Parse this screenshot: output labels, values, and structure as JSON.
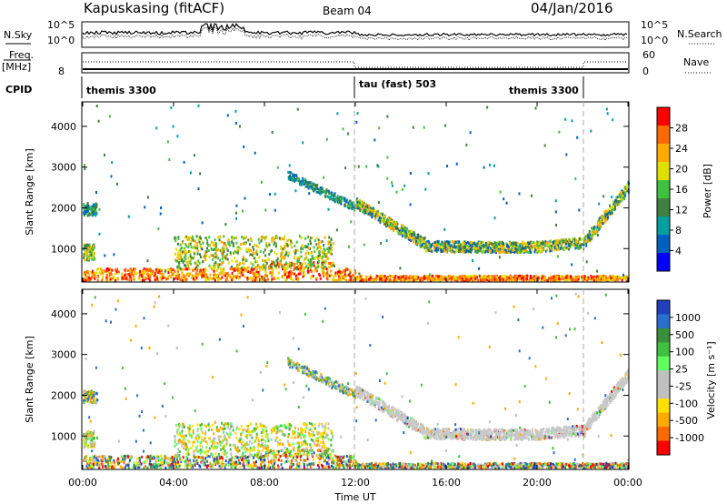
{
  "header": {
    "station": "Kapuskasing (fitACF)",
    "beam": "Beam 04",
    "date": "04/Jan/2016"
  },
  "noise_panel": {
    "left_label": "N.Sky",
    "right_label": "N.Search",
    "ticks": [
      "10^5",
      "10^0"
    ]
  },
  "freq_panel": {
    "left_label_top": "Freq.",
    "left_label_bottom": "[MHz]",
    "left_tick": "8",
    "right_label": "Nave",
    "right_ticks": [
      "60",
      "0"
    ]
  },
  "cpid_panel": {
    "label": "CPID",
    "segments": [
      {
        "name": "themis 3300",
        "start_h": 0,
        "end_h": 12
      },
      {
        "name": "tau (fast) 503",
        "start_h": 12,
        "end_h": 22
      },
      {
        "name": "themis 3300",
        "start_h": 22,
        "end_h": 24
      }
    ]
  },
  "x_axis": {
    "label": "Time UT",
    "ticks": [
      "00:00",
      "04:00",
      "08:00",
      "12:00",
      "16:00",
      "20:00",
      "00:00"
    ]
  },
  "chart_data": [
    {
      "type": "heatmap",
      "name": "power",
      "ylabel": "Slant Range [km]",
      "yticks": [
        1000,
        2000,
        3000,
        4000
      ],
      "ylim": [
        180,
        4600
      ],
      "xlim_hours": [
        0,
        24
      ],
      "colorbar_label": "Power [dB]",
      "colorbar_ticks": [
        "28",
        "24",
        "20",
        "16",
        "12",
        "8",
        "4"
      ],
      "colorbar_colors": [
        "#ff0000",
        "#ff6a00",
        "#ffaa00",
        "#e0e000",
        "#40c040",
        "#408040",
        "#00a0a0",
        "#0060c0",
        "#0000ff"
      ]
    },
    {
      "type": "heatmap",
      "name": "velocity",
      "ylabel": "Slant Range [km]",
      "yticks": [
        1000,
        2000,
        3000,
        4000
      ],
      "ylim": [
        180,
        4600
      ],
      "xlim_hours": [
        0,
        24
      ],
      "colorbar_label": "Velocity [m s⁻¹]",
      "colorbar_ticks": [
        "1000",
        "500",
        "100",
        "25",
        "-25",
        "-100",
        "-500",
        "-1000"
      ],
      "colorbar_colors": [
        "#2040c0",
        "#2a6fd0",
        "#3a8f3a",
        "#40c040",
        "#60ff60",
        "#c0c0c0",
        "#c0c0c0",
        "#ffe000",
        "#ffaa00",
        "#ff6a00",
        "#ff0000"
      ]
    }
  ]
}
